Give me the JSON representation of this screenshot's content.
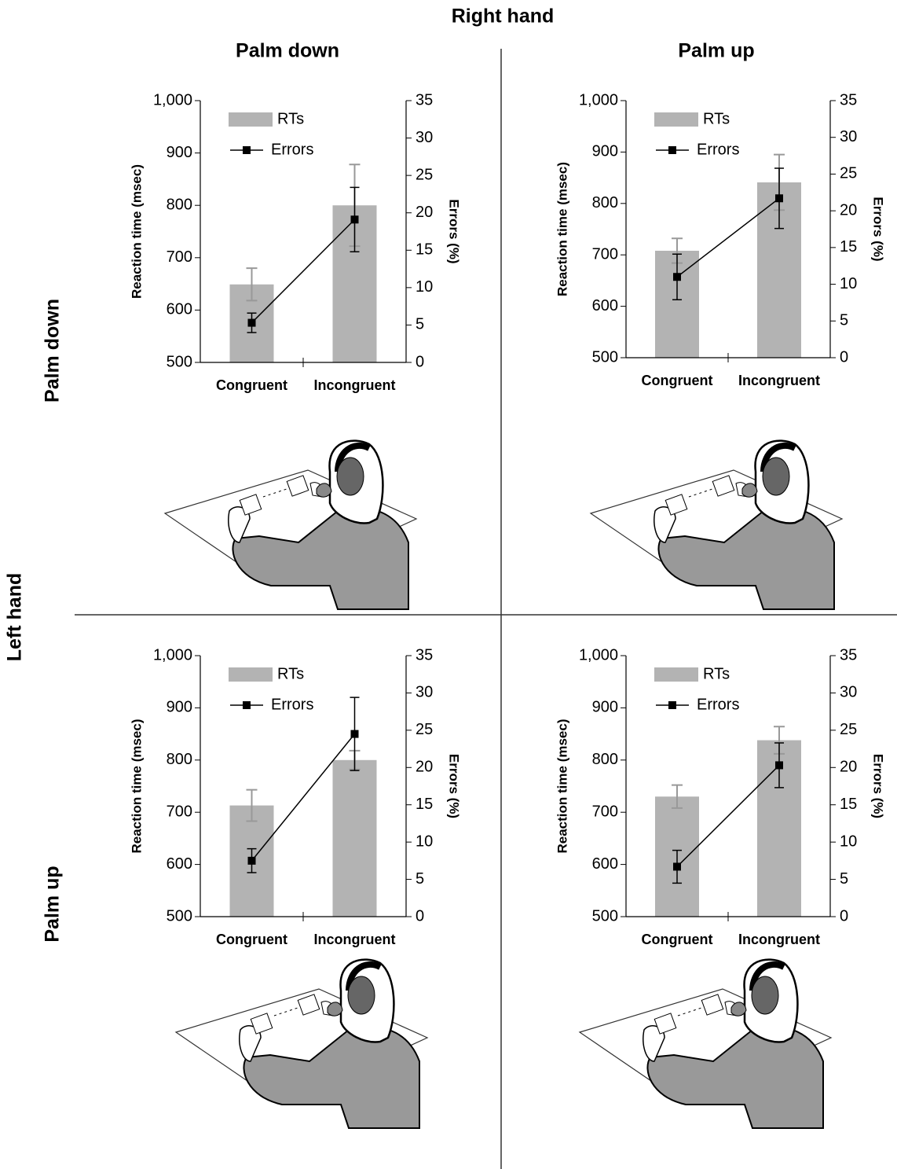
{
  "figure": {
    "column_title": "Right hand",
    "column_labels": [
      "Palm down",
      "Palm up"
    ],
    "row_title": "Left hand",
    "row_labels": [
      "Palm down",
      "Palm up"
    ]
  },
  "chart_data": [
    {
      "type": "bar",
      "categories": [
        "Congruent",
        "Incongruent"
      ],
      "series": [
        {
          "name": "RTs",
          "color": "#b3b3b3",
          "values": [
            649,
            800
          ],
          "errors": [
            31,
            78
          ]
        },
        {
          "name": "Errors",
          "type": "line",
          "axis": "y2",
          "color": "#000000",
          "values": [
            5.3,
            19.1
          ],
          "errors": [
            1.3,
            4.3
          ]
        }
      ],
      "ylabel": "Reaction time (msec)",
      "y2label": "Errors (%)",
      "ylim": [
        500,
        1000
      ],
      "yticks": [
        500,
        600,
        700,
        800,
        900,
        {
          "value": 1000,
          "label": "1,000"
        }
      ],
      "y2lim": [
        0,
        35
      ],
      "y2ticks": [
        0,
        5,
        10,
        15,
        20,
        25,
        30,
        35
      ]
    },
    {
      "type": "bar",
      "categories": [
        "Congruent",
        "Incongruent"
      ],
      "series": [
        {
          "name": "RTs",
          "color": "#b3b3b3",
          "values": [
            708,
            841
          ],
          "errors": [
            24,
            54
          ]
        },
        {
          "name": "Errors",
          "type": "line",
          "axis": "y2",
          "color": "#000000",
          "values": [
            11.0,
            21.7
          ],
          "errors": [
            3.1,
            4.1
          ]
        }
      ],
      "ylabel": "Reaction time (msec)",
      "y2label": "Errors (%)",
      "ylim": [
        500,
        1000
      ],
      "yticks": [
        500,
        600,
        700,
        800,
        900,
        {
          "value": 1000,
          "label": "1,000"
        }
      ],
      "y2lim": [
        0,
        35
      ],
      "y2ticks": [
        0,
        5,
        10,
        15,
        20,
        25,
        30,
        35
      ]
    },
    {
      "type": "bar",
      "categories": [
        "Congruent",
        "Incongruent"
      ],
      "series": [
        {
          "name": "RTs",
          "color": "#b3b3b3",
          "values": [
            713,
            800
          ],
          "errors": [
            30,
            18
          ]
        },
        {
          "name": "Errors",
          "type": "line",
          "axis": "y2",
          "color": "#000000",
          "values": [
            7.5,
            24.5
          ],
          "errors": [
            1.6,
            4.9
          ]
        }
      ],
      "ylabel": "Reaction time (msec)",
      "y2label": "Errors (%)",
      "ylim": [
        500,
        1000
      ],
      "yticks": [
        500,
        600,
        700,
        800,
        900,
        {
          "value": 1000,
          "label": "1,000"
        }
      ],
      "y2lim": [
        0,
        35
      ],
      "y2ticks": [
        0,
        5,
        10,
        15,
        20,
        25,
        30,
        35
      ]
    },
    {
      "type": "bar",
      "categories": [
        "Congruent",
        "Incongruent"
      ],
      "series": [
        {
          "name": "RTs",
          "color": "#b3b3b3",
          "values": [
            730,
            838
          ],
          "errors": [
            22,
            26
          ]
        },
        {
          "name": "Errors",
          "type": "line",
          "axis": "y2",
          "color": "#000000",
          "values": [
            6.7,
            20.3
          ],
          "errors": [
            2.2,
            3.0
          ]
        }
      ],
      "ylabel": "Reaction time (msec)",
      "y2label": "Errors (%)",
      "ylim": [
        500,
        1000
      ],
      "yticks": [
        500,
        600,
        700,
        800,
        900,
        {
          "value": 1000,
          "label": "1,000"
        }
      ],
      "y2lim": [
        0,
        35
      ],
      "y2ticks": [
        0,
        5,
        10,
        15,
        20,
        25,
        30,
        35
      ]
    }
  ]
}
